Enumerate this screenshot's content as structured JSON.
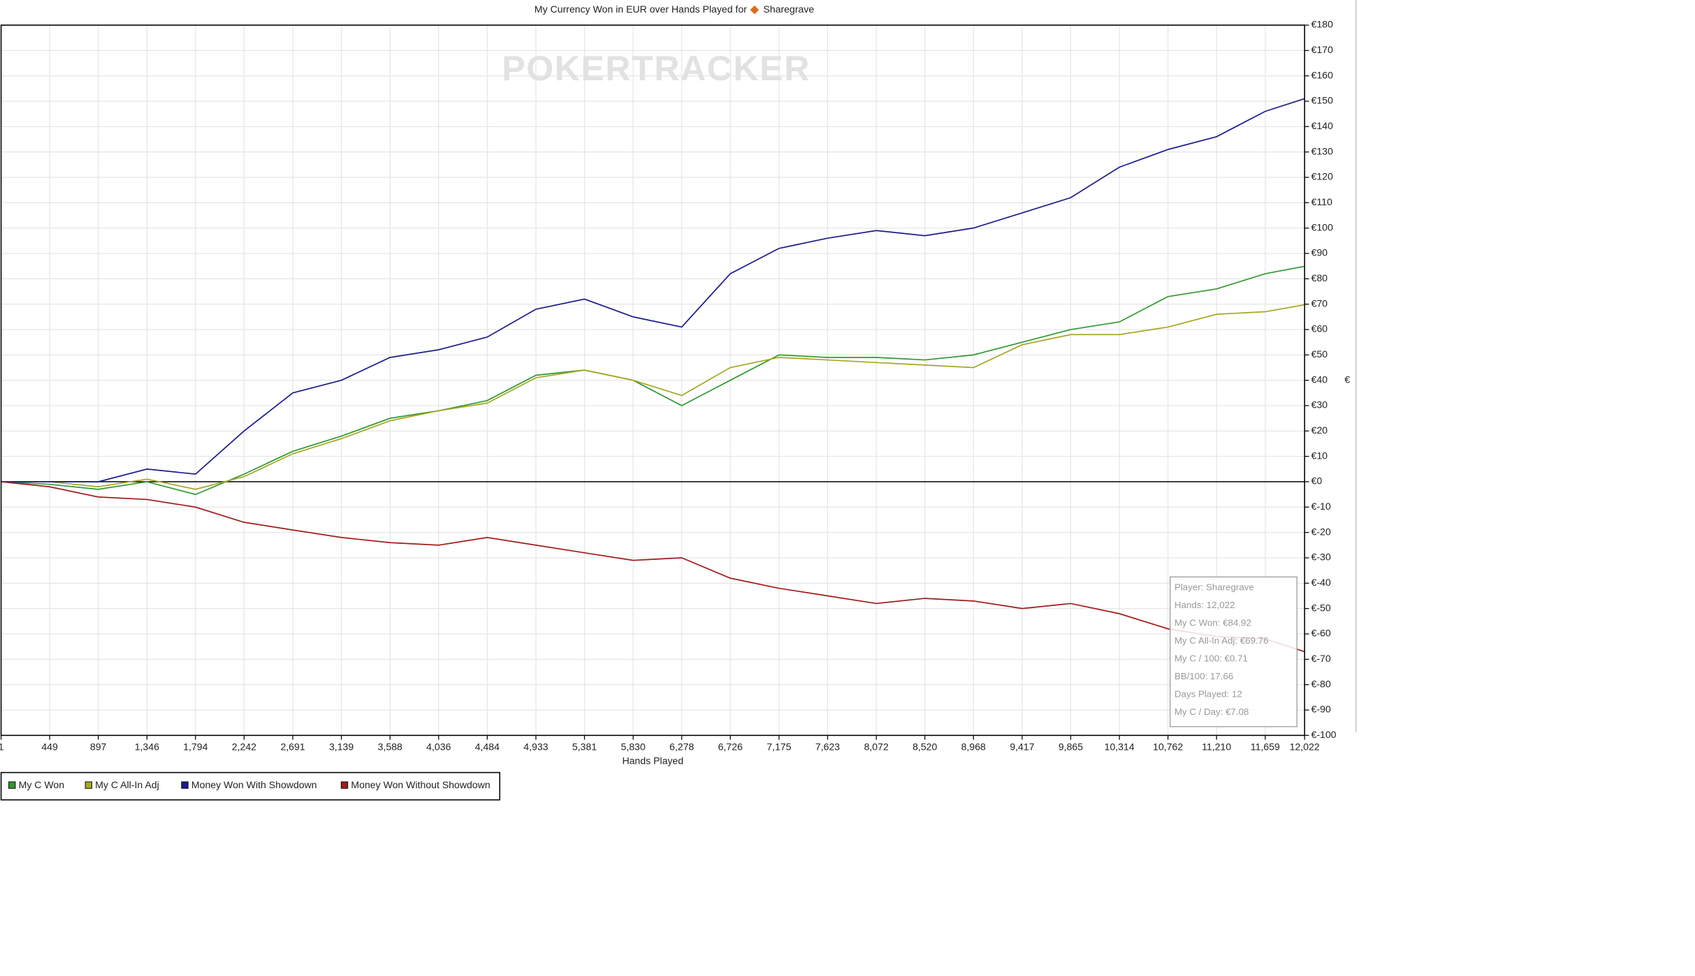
{
  "chart_data": {
    "type": "line",
    "title": "My Currency Won in EUR over Hands Played for",
    "player": "Sharegrave",
    "watermark": "POKERTRACKER",
    "x_label": "Hands Played",
    "y_label": "€",
    "x": [
      1,
      449,
      897,
      1346,
      1794,
      2242,
      2691,
      3139,
      3588,
      4036,
      4484,
      4933,
      5381,
      5830,
      6278,
      6726,
      7175,
      7623,
      8072,
      8520,
      8968,
      9417,
      9865,
      10314,
      10762,
      11210,
      11659,
      12022
    ],
    "series": [
      {
        "name": "My C Won",
        "color": "#2f9a2f",
        "values": [
          0,
          -1,
          -3,
          0,
          -5,
          3,
          12,
          18,
          25,
          28,
          32,
          42,
          44,
          40,
          30,
          40,
          50,
          49,
          49,
          48,
          50,
          55,
          60,
          63,
          73,
          76,
          82,
          84.92
        ]
      },
      {
        "name": "My C All-In Adj",
        "color": "#a6a626",
        "values": [
          0,
          0,
          -2,
          1,
          -3,
          2,
          11,
          17,
          24,
          28,
          31,
          41,
          44,
          40,
          34,
          45,
          49,
          48,
          47,
          46,
          45,
          54,
          58,
          58,
          61,
          66,
          67,
          69.76
        ]
      },
      {
        "name": "Money Won With Showdown",
        "color": "#1c1c8c",
        "values": [
          0,
          0,
          0,
          5,
          3,
          20,
          35,
          40,
          49,
          52,
          57,
          68,
          72,
          65,
          61,
          82,
          92,
          96,
          99,
          97,
          100,
          106,
          112,
          124,
          131,
          136,
          146,
          151
        ]
      },
      {
        "name": "Money Won Without Showdown",
        "color": "#a01c1c",
        "values": [
          0,
          -2,
          -6,
          -7,
          -10,
          -16,
          -19,
          -22,
          -24,
          -25,
          -22,
          -25,
          -28,
          -31,
          -30,
          -38,
          -42,
          -45,
          -48,
          -46,
          -47,
          -50,
          -48,
          -52,
          -58,
          -61,
          -62,
          -67
        ]
      }
    ],
    "xlim": [
      1,
      12022
    ],
    "xticks": [
      1,
      449,
      897,
      {
        "value": 1346,
        "label": "1,346"
      },
      {
        "value": 1794,
        "label": "1,794"
      },
      {
        "value": 2242,
        "label": "2,242"
      },
      {
        "value": 2691,
        "label": "2,691"
      },
      {
        "value": 3139,
        "label": "3,139"
      },
      {
        "value": 3588,
        "label": "3,588"
      },
      {
        "value": 4036,
        "label": "4,036"
      },
      {
        "value": 4484,
        "label": "4,484"
      },
      {
        "value": 4933,
        "label": "4,933"
      },
      {
        "value": 5381,
        "label": "5,381"
      },
      {
        "value": 5830,
        "label": "5,830"
      },
      {
        "value": 6278,
        "label": "6,278"
      },
      {
        "value": 6726,
        "label": "6,726"
      },
      {
        "value": 7175,
        "label": "7,175"
      },
      {
        "value": 7623,
        "label": "7,623"
      },
      {
        "value": 8072,
        "label": "8,072"
      },
      {
        "value": 8520,
        "label": "8,520"
      },
      {
        "value": 8968,
        "label": "8,968"
      },
      {
        "value": 9417,
        "label": "9,417"
      },
      {
        "value": 9865,
        "label": "9,865"
      },
      {
        "value": 10314,
        "label": "10,314"
      },
      {
        "value": 10762,
        "label": "10,762"
      },
      {
        "value": 11210,
        "label": "11,210"
      },
      {
        "value": 11659,
        "label": "11,659"
      },
      {
        "value": 12022,
        "label": "12,022"
      }
    ],
    "ylim": [
      -100,
      180
    ],
    "yticks": [
      {
        "value": 180,
        "label": "€180"
      },
      {
        "value": 170,
        "label": "€170"
      },
      {
        "value": 160,
        "label": "€160"
      },
      {
        "value": 150,
        "label": "€150"
      },
      {
        "value": 140,
        "label": "€140"
      },
      {
        "value": 130,
        "label": "€130"
      },
      {
        "value": 120,
        "label": "€120"
      },
      {
        "value": 110,
        "label": "€110"
      },
      {
        "value": 100,
        "label": "€100"
      },
      {
        "value": 90,
        "label": "€90"
      },
      {
        "value": 80,
        "label": "€80"
      },
      {
        "value": 70,
        "label": "€70"
      },
      {
        "value": 60,
        "label": "€60"
      },
      {
        "value": 50,
        "label": "€50"
      },
      {
        "value": 40,
        "label": "€40"
      },
      {
        "value": 30,
        "label": "€30"
      },
      {
        "value": 20,
        "label": "€20"
      },
      {
        "value": 10,
        "label": "€10"
      },
      {
        "value": 0,
        "label": "€0"
      },
      {
        "value": -10,
        "label": "€-10"
      },
      {
        "value": -20,
        "label": "€-20"
      },
      {
        "value": -30,
        "label": "€-30"
      },
      {
        "value": -40,
        "label": "€-40"
      },
      {
        "value": -50,
        "label": "€-50"
      },
      {
        "value": -60,
        "label": "€-60"
      },
      {
        "value": -70,
        "label": "€-70"
      },
      {
        "value": -80,
        "label": "€-80"
      },
      {
        "value": -90,
        "label": "€-90"
      },
      {
        "value": -100,
        "label": "€-100"
      }
    ],
    "grid": true,
    "legend": "bottom",
    "tooltip": [
      "Player: Sharegrave",
      "Hands: 12,022",
      "My C Won: €84.92",
      "My C All-In Adj: €69.76",
      "My C / 100: €0.71",
      "BB/100: 17.66",
      "Days Played: 12",
      "My C / Day: €7.08"
    ]
  }
}
